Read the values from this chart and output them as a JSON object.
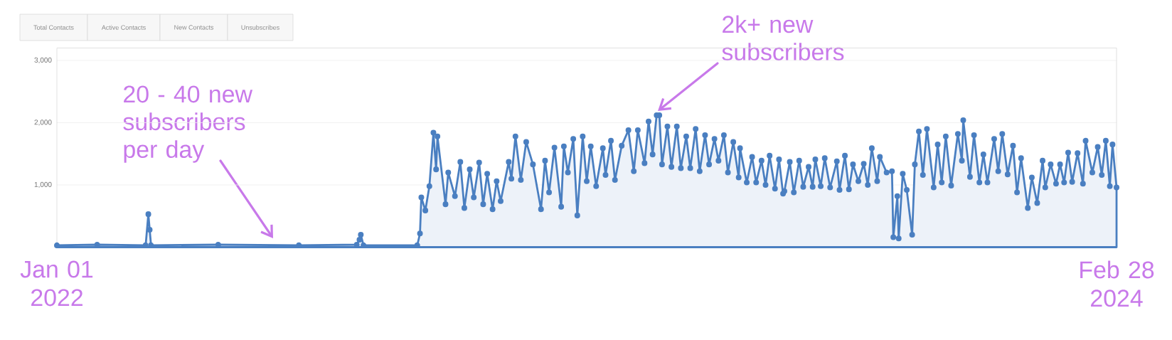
{
  "chart_data": {
    "type": "area",
    "x": [
      "2022-01-01",
      "2022-01-31",
      "2022-03-08",
      "2022-03-10",
      "2022-03-11",
      "2022-03-12",
      "2022-05-01",
      "2022-06-30",
      "2022-08-12",
      "2022-08-14",
      "2022-08-15",
      "2022-08-17",
      "2022-09-26",
      "2022-09-28",
      "2022-09-29",
      "2022-10-02",
      "2022-10-05",
      "2022-10-08",
      "2022-10-10",
      "2022-10-11",
      "2022-10-17",
      "2022-10-19",
      "2022-10-24",
      "2022-10-28",
      "2022-10-31",
      "2022-11-04",
      "2022-11-07",
      "2022-11-11",
      "2022-11-14",
      "2022-11-17",
      "2022-11-21",
      "2022-11-24",
      "2022-11-27",
      "2022-12-03",
      "2022-12-05",
      "2022-12-08",
      "2022-12-12",
      "2022-12-16",
      "2022-12-21",
      "2022-12-27",
      "2022-12-30",
      "2023-01-02",
      "2023-01-06",
      "2023-01-11",
      "2023-01-13",
      "2023-01-16",
      "2023-01-20",
      "2023-01-23",
      "2023-01-27",
      "2023-01-30",
      "2023-02-02",
      "2023-02-06",
      "2023-02-11",
      "2023-02-13",
      "2023-02-17",
      "2023-02-20",
      "2023-02-25",
      "2023-03-02",
      "2023-03-06",
      "2023-03-09",
      "2023-03-14",
      "2023-03-17",
      "2023-03-20",
      "2023-03-23",
      "2023-03-25",
      "2023-03-27",
      "2023-03-31",
      "2023-04-03",
      "2023-04-07",
      "2023-04-10",
      "2023-04-14",
      "2023-04-17",
      "2023-04-21",
      "2023-04-24",
      "2023-04-28",
      "2023-05-01",
      "2023-05-05",
      "2023-05-08",
      "2023-05-12",
      "2023-05-15",
      "2023-05-19",
      "2023-05-23",
      "2023-05-24",
      "2023-05-29",
      "2023-06-02",
      "2023-06-05",
      "2023-06-09",
      "2023-06-12",
      "2023-06-15",
      "2023-06-19",
      "2023-06-22",
      "2023-06-25",
      "2023-06-26",
      "2023-06-30",
      "2023-07-03",
      "2023-07-07",
      "2023-07-10",
      "2023-07-14",
      "2023-07-17",
      "2023-07-19",
      "2023-07-23",
      "2023-07-26",
      "2023-07-30",
      "2023-08-04",
      "2023-08-06",
      "2023-08-10",
      "2023-08-13",
      "2023-08-16",
      "2023-08-20",
      "2023-08-24",
      "2023-08-27",
      "2023-08-30",
      "2023-09-03",
      "2023-09-05",
      "2023-09-10",
      "2023-09-14",
      "2023-09-15",
      "2023-09-18",
      "2023-09-19",
      "2023-09-22",
      "2023-09-25",
      "2023-09-29",
      "2023-10-01",
      "2023-10-04",
      "2023-10-07",
      "2023-10-10",
      "2023-10-15",
      "2023-10-18",
      "2023-10-21",
      "2023-10-24",
      "2023-10-28",
      "2023-11-02",
      "2023-11-05",
      "2023-11-06",
      "2023-11-11",
      "2023-11-14",
      "2023-11-18",
      "2023-11-21",
      "2023-11-24",
      "2023-11-29",
      "2023-12-02",
      "2023-12-05",
      "2023-12-09",
      "2023-12-13",
      "2023-12-16",
      "2023-12-19",
      "2023-12-24",
      "2023-12-27",
      "2023-12-31",
      "2024-01-04",
      "2024-01-06",
      "2024-01-10",
      "2024-01-14",
      "2024-01-17",
      "2024-01-20",
      "2024-01-23",
      "2024-01-26",
      "2024-01-30",
      "2024-02-03",
      "2024-02-05",
      "2024-02-10",
      "2024-02-14",
      "2024-02-17",
      "2024-02-20",
      "2024-02-23",
      "2024-02-25",
      "2024-02-28"
    ],
    "series": [
      {
        "color": "#4a7fc1",
        "values": [
          30,
          40,
          30,
          530,
          280,
          30,
          40,
          30,
          40,
          120,
          200,
          30,
          30,
          220,
          800,
          590,
          980,
          1840,
          1250,
          1780,
          690,
          1200,
          820,
          1370,
          630,
          1250,
          800,
          1360,
          690,
          1180,
          610,
          1060,
          740,
          1370,
          1100,
          1780,
          1080,
          1690,
          1330,
          610,
          1390,
          880,
          1600,
          650,
          1620,
          1200,
          1740,
          510,
          1780,
          1060,
          1620,
          980,
          1590,
          1160,
          1710,
          1080,
          1630,
          1880,
          1220,
          1880,
          1350,
          2020,
          1490,
          2120,
          2120,
          1330,
          1940,
          1290,
          1940,
          1270,
          1780,
          1270,
          1900,
          1220,
          1800,
          1330,
          1740,
          1390,
          1800,
          1200,
          1690,
          1120,
          1590,
          1040,
          1450,
          1040,
          1390,
          1000,
          1470,
          940,
          1410,
          860,
          900,
          1370,
          880,
          1390,
          970,
          1290,
          970,
          1410,
          980,
          1430,
          960,
          1380,
          920,
          1470,
          930,
          1330,
          1060,
          1340,
          1000,
          1590,
          1060,
          1450,
          1200,
          1220,
          160,
          820,
          140,
          1180,
          920,
          200,
          1330,
          1860,
          1160,
          1900,
          960,
          1650,
          1040,
          1780,
          990,
          1820,
          1390,
          2040,
          1130,
          1800,
          1040,
          1490,
          1040,
          1740,
          1220,
          1820,
          1170,
          1630,
          880,
          1430,
          630,
          1120,
          710,
          1390,
          960,
          1330,
          1020,
          1330,
          1040,
          1520,
          1050,
          1510,
          1020,
          1710,
          1200,
          1610,
          1160,
          1710,
          980,
          1650,
          960
        ]
      }
    ],
    "xlim": [
      "2022-01-01",
      "2024-02-28"
    ],
    "xticks": [
      {
        "value": "2022-01-01",
        "label": "Jan 01 2022"
      },
      {
        "value": "2024-02-28",
        "label": "Feb 28 2024"
      }
    ],
    "ylim": [
      0,
      3200
    ],
    "yticks": [
      {
        "value": 1000,
        "label": "1,000"
      },
      {
        "value": 2000,
        "label": "2,000"
      },
      {
        "value": 3000,
        "label": "3,000"
      }
    ],
    "grid": "y",
    "marker": "circle",
    "line_style": "solid",
    "annotations": [
      "Total Contacts",
      "Active Contacts",
      "New Contacts",
      "Unsubscribes",
      "20 - 40 new subscribers per day",
      "2k+ new subscribers"
    ]
  }
}
